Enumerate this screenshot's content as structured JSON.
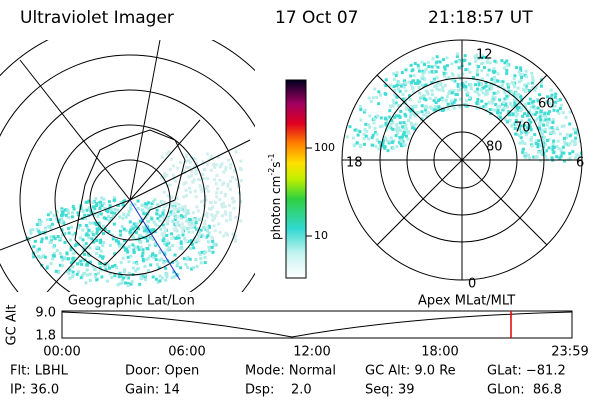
{
  "header": {
    "title": "Ultraviolet Imager",
    "date": "17 Oct 07",
    "time": "21:18:57 UT"
  },
  "colorbar": {
    "label": "photon cm",
    "exp1": "-2",
    "unit2": "s",
    "exp2": "-1",
    "ticks": [
      "100",
      "10"
    ]
  },
  "polar": {
    "top": "12",
    "left": "18",
    "right": "6",
    "bottom": "0",
    "rings": [
      "60",
      "70",
      "80"
    ]
  },
  "orbit": {
    "left_title": "Geographic Lat/Lon",
    "right_title": "Apex MLat/MLT",
    "axis_label": "GC Alt",
    "y_top": "9.0",
    "y_bottom": "1.8",
    "times": [
      "00:00",
      "06:00",
      "12:00",
      "18:00",
      "23:59"
    ]
  },
  "status": {
    "rows": [
      [
        "Flt: LBHL",
        "Door: Open",
        "Mode: Normal",
        "GC Alt: 9.0 Re",
        "GLat: −81.2"
      ],
      [
        "IP: 36.0",
        "Gain: 14",
        "Dsp:    2.0",
        "Seq: 39",
        "GLon:  86.8"
      ]
    ]
  }
}
